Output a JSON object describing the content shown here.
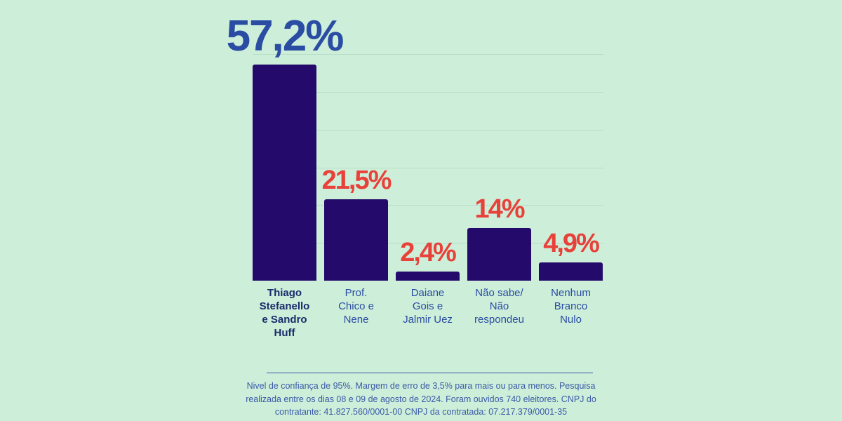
{
  "chart_data": {
    "type": "bar",
    "categories": [
      "Thiago Stefanello e Sandro Huff",
      "Prof. Chico e Nene",
      "Daiane Gois e Jalmir Uez",
      "Não sabe/ Não respondeu",
      "Nenhum Branco Nulo"
    ],
    "values": [
      57.2,
      21.5,
      2.4,
      14,
      4.9
    ],
    "value_labels": [
      "57,2%",
      "21,5%",
      "2,4%",
      "14%",
      "4,9%"
    ],
    "color": "#240a6b",
    "value_label_colors": [
      "#2a4ca3",
      "#e8413a",
      "#e8413a",
      "#e8413a",
      "#e8413a"
    ],
    "category_colors": [
      "#1a2c6b",
      "#2a4ca3",
      "#2a4ca3",
      "#2a4ca3",
      "#2a4ca3"
    ],
    "ylim": [
      0,
      60
    ],
    "yticks": [
      10,
      20,
      30,
      40,
      50,
      60
    ],
    "grid": true
  },
  "footer": {
    "note": "Nivel de confiança de 95%. Margem de erro de 3,5% para mais ou para menos. Pesquisa realizada entre os dias 08 e 09 de agosto de 2024. Foram ouvidos 740 eleitores. CNPJ do contratante: 41.827.560/0001-00 CNPJ da contratada: 07.217.379/0001-35"
  }
}
